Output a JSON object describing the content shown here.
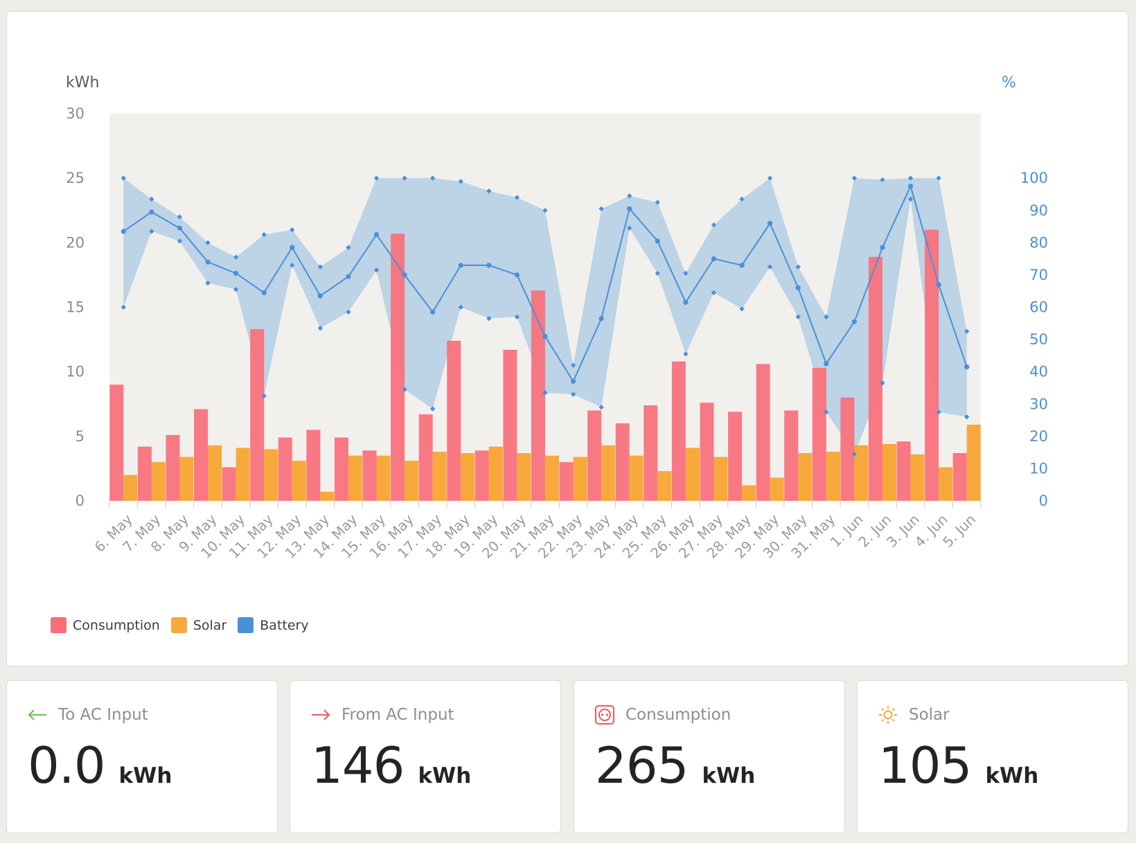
{
  "chart_data": {
    "type": "bar",
    "ylabel_left": "kWh",
    "ylabel_right": "%",
    "ylim_left": [
      0,
      30
    ],
    "yticks_left": [
      "0",
      "5",
      "10",
      "15",
      "20",
      "25",
      "30"
    ],
    "ylim_right": [
      0,
      120
    ],
    "yticks_right": [
      "0",
      "10",
      "20",
      "30",
      "40",
      "50",
      "60",
      "70",
      "80",
      "90",
      "100"
    ],
    "categories": [
      "6. May",
      "7. May",
      "8. May",
      "9. May",
      "10. May",
      "11. May",
      "12. May",
      "13. May",
      "14. May",
      "15. May",
      "16. May",
      "17. May",
      "18. May",
      "19. May",
      "20. May",
      "21. May",
      "22. May",
      "23. May",
      "24. May",
      "25. May",
      "26. May",
      "27. May",
      "28. May",
      "29. May",
      "30. May",
      "31. May",
      "1. Jun",
      "2. Jun",
      "3. Jun",
      "4. Jun",
      "5. Jun"
    ],
    "series": [
      {
        "name": "Consumption",
        "type": "bar",
        "axis": "left",
        "color": "#f86f79",
        "values": [
          9.0,
          4.2,
          5.1,
          7.1,
          2.6,
          13.3,
          4.9,
          5.5,
          4.9,
          3.9,
          20.7,
          6.7,
          12.4,
          3.9,
          11.7,
          16.3,
          3.0,
          7.0,
          6.0,
          7.4,
          10.8,
          7.6,
          6.9,
          10.6,
          7.0,
          10.3,
          8.0,
          18.9,
          4.6,
          21.0,
          3.7
        ]
      },
      {
        "name": "Solar",
        "type": "bar",
        "axis": "left",
        "color": "#f7a93b",
        "values": [
          2.0,
          3.0,
          3.4,
          4.3,
          4.1,
          4.0,
          3.1,
          0.7,
          3.5,
          3.5,
          3.1,
          3.8,
          3.7,
          4.2,
          3.7,
          3.5,
          3.4,
          4.3,
          3.5,
          2.3,
          4.1,
          3.4,
          1.2,
          1.8,
          3.7,
          3.8,
          4.3,
          4.4,
          3.6,
          2.6,
          5.9
        ]
      },
      {
        "name": "Battery",
        "type": "line",
        "axis": "right",
        "color": "#4a90d9",
        "values": [
          83.5,
          89.5,
          84.5,
          74,
          70.5,
          64.5,
          78.5,
          63.5,
          69.5,
          82.5,
          70,
          58.5,
          73,
          73,
          70,
          51,
          37,
          56.5,
          90.5,
          80.5,
          61.5,
          75,
          73,
          86,
          66,
          42.5,
          55.5,
          78.5,
          97.5,
          67,
          41.5
        ],
        "max": [
          100,
          93.5,
          88,
          80,
          75.5,
          82.5,
          84,
          72.5,
          78.5,
          100,
          100,
          100,
          99,
          96,
          94,
          90,
          42,
          90.5,
          94.5,
          92.5,
          70.5,
          85.5,
          93.5,
          100,
          72.5,
          57,
          100,
          99.5,
          100,
          100,
          52.5
        ],
        "min": [
          60,
          83.5,
          80.5,
          67.5,
          65.5,
          32.5,
          73,
          53.5,
          58.5,
          71.5,
          34.5,
          28.5,
          60,
          56.5,
          57,
          33.5,
          33,
          29,
          84.5,
          70.5,
          45.5,
          64.5,
          59.5,
          72.5,
          57,
          27.5,
          14.5,
          36.5,
          93.5,
          27.5,
          26
        ]
      }
    ],
    "legend": [
      {
        "label": "Consumption",
        "color": "#f86f79"
      },
      {
        "label": "Solar",
        "color": "#f7a93b"
      },
      {
        "label": "Battery",
        "color": "#4a90d9"
      }
    ],
    "grid": false,
    "legend_position": "bottom-left"
  },
  "stats": [
    {
      "label": "To AC Input",
      "value": "0.0",
      "unit": "kWh",
      "icon": "arrow-left-icon",
      "color": "#6bbf59"
    },
    {
      "label": "From AC Input",
      "value": "146",
      "unit": "kWh",
      "icon": "arrow-right-icon",
      "color": "#f0585e"
    },
    {
      "label": "Consumption",
      "value": "265",
      "unit": "kWh",
      "icon": "socket-icon",
      "color": "#f0585e"
    },
    {
      "label": "Solar",
      "value": "105",
      "unit": "kWh",
      "icon": "sun-icon",
      "color": "#f7a93b"
    }
  ]
}
